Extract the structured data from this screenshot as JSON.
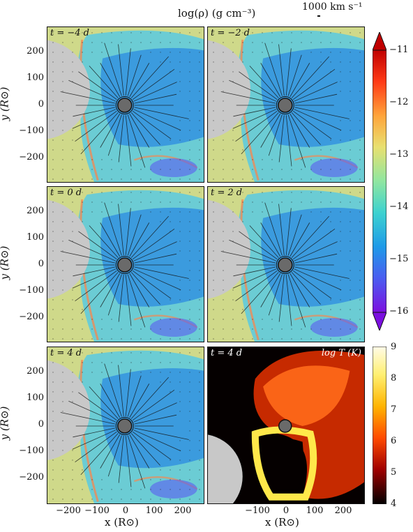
{
  "colorbar_density": {
    "title": "log(ρ) (g cm⁻³)",
    "ticks": [
      "−11",
      "−12",
      "−13",
      "−14",
      "−15",
      "−16"
    ]
  },
  "colorbar_temperature": {
    "label": "log T (K)",
    "ticks": [
      "9",
      "8",
      "7",
      "6",
      "5",
      "4"
    ]
  },
  "velocity_scale_label": "1000 km s⁻¹",
  "panels": [
    {
      "time": "t = −4 d"
    },
    {
      "time": "t = −2 d"
    },
    {
      "time": "t = 0 d"
    },
    {
      "time": "t = 2 d"
    },
    {
      "time": "t = 4 d"
    },
    {
      "time": "t = 4 d"
    }
  ],
  "axes": {
    "ylabel": "y (R⊙)",
    "xlabel": "x (R⊙)",
    "yticks": [
      "200",
      "100",
      "0",
      "−100",
      "−200"
    ],
    "xticks_left": [
      "−200",
      "−100",
      "0",
      "100",
      "200"
    ],
    "xticks_right": [
      "−100",
      "0",
      "100",
      "200"
    ]
  }
}
